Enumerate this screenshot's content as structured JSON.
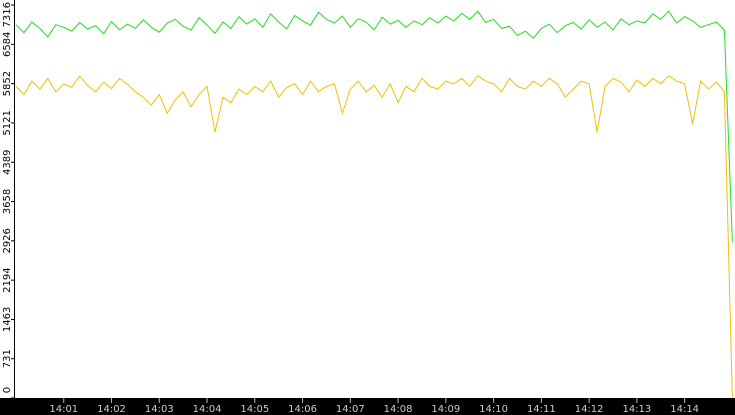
{
  "chart_data": {
    "type": "line",
    "categories": [
      null,
      null,
      null,
      null,
      null,
      null,
      "14:01",
      null,
      null,
      null,
      null,
      null,
      "14:02",
      null,
      null,
      null,
      null,
      null,
      "14:03",
      null,
      null,
      null,
      null,
      null,
      "14:04",
      null,
      null,
      null,
      null,
      null,
      "14:05",
      null,
      null,
      null,
      null,
      null,
      "14:06",
      null,
      null,
      null,
      null,
      null,
      "14:07",
      null,
      null,
      null,
      null,
      null,
      "14:08",
      null,
      null,
      null,
      null,
      null,
      "14:09",
      null,
      null,
      null,
      null,
      null,
      "14:10",
      null,
      null,
      null,
      null,
      null,
      "14:11",
      null,
      null,
      null,
      null,
      null,
      "14:12",
      null,
      null,
      null,
      null,
      null,
      "14:13",
      null,
      null,
      null,
      null,
      null,
      "14:14",
      null,
      null,
      null,
      null,
      null,
      null
    ],
    "series": [
      {
        "color": "#22dd22",
        "values": [
          6950,
          6800,
          7000,
          6880,
          6720,
          6950,
          6900,
          6830,
          6990,
          6870,
          6930,
          6780,
          7010,
          6850,
          6960,
          6880,
          7040,
          6900,
          6810,
          6980,
          7050,
          6920,
          6850,
          7080,
          6940,
          6790,
          7000,
          6880,
          7100,
          6960,
          7060,
          6900,
          7150,
          7000,
          6870,
          7120,
          7020,
          6940,
          7180,
          7050,
          6980,
          7110,
          6900,
          7060,
          7000,
          6850,
          7090,
          6960,
          7030,
          6900,
          7020,
          6950,
          7080,
          6980,
          7110,
          7020,
          7160,
          7050,
          7200,
          6990,
          7050,
          6880,
          6920,
          6750,
          6830,
          6700,
          6880,
          6960,
          6800,
          6930,
          6990,
          6870,
          7040,
          6900,
          7000,
          6850,
          7060,
          6950,
          7020,
          6980,
          7150,
          7050,
          7200,
          6980,
          7100,
          7020,
          6900,
          6950,
          7000,
          6850,
          2900
        ]
      },
      {
        "color": "#f0c000",
        "values": [
          5800,
          5650,
          5900,
          5750,
          5950,
          5700,
          5850,
          5780,
          5990,
          5820,
          5700,
          5880,
          5760,
          5950,
          5840,
          5700,
          5600,
          5450,
          5650,
          5300,
          5550,
          5700,
          5420,
          5650,
          5800,
          4950,
          5600,
          5500,
          5750,
          5650,
          5800,
          5700,
          5900,
          5600,
          5780,
          5850,
          5650,
          5900,
          5700,
          5800,
          5850,
          5300,
          5750,
          5900,
          5700,
          5820,
          5600,
          5850,
          5500,
          5800,
          5700,
          5950,
          5800,
          5750,
          5900,
          5850,
          5950,
          5800,
          6000,
          5900,
          5850,
          5700,
          5950,
          5800,
          5750,
          5900,
          5800,
          5950,
          5850,
          5600,
          5750,
          5900,
          5850,
          4950,
          5800,
          5950,
          5880,
          5700,
          5920,
          5800,
          5950,
          5850,
          6000,
          5900,
          5850,
          5100,
          5900,
          5750,
          5880,
          5700,
          0
        ]
      }
    ],
    "ylim": [
      0,
      7316
    ],
    "yticks": [
      0,
      731,
      1463,
      2194,
      2926,
      3658,
      4389,
      5121,
      5852,
      6584,
      7316
    ]
  }
}
